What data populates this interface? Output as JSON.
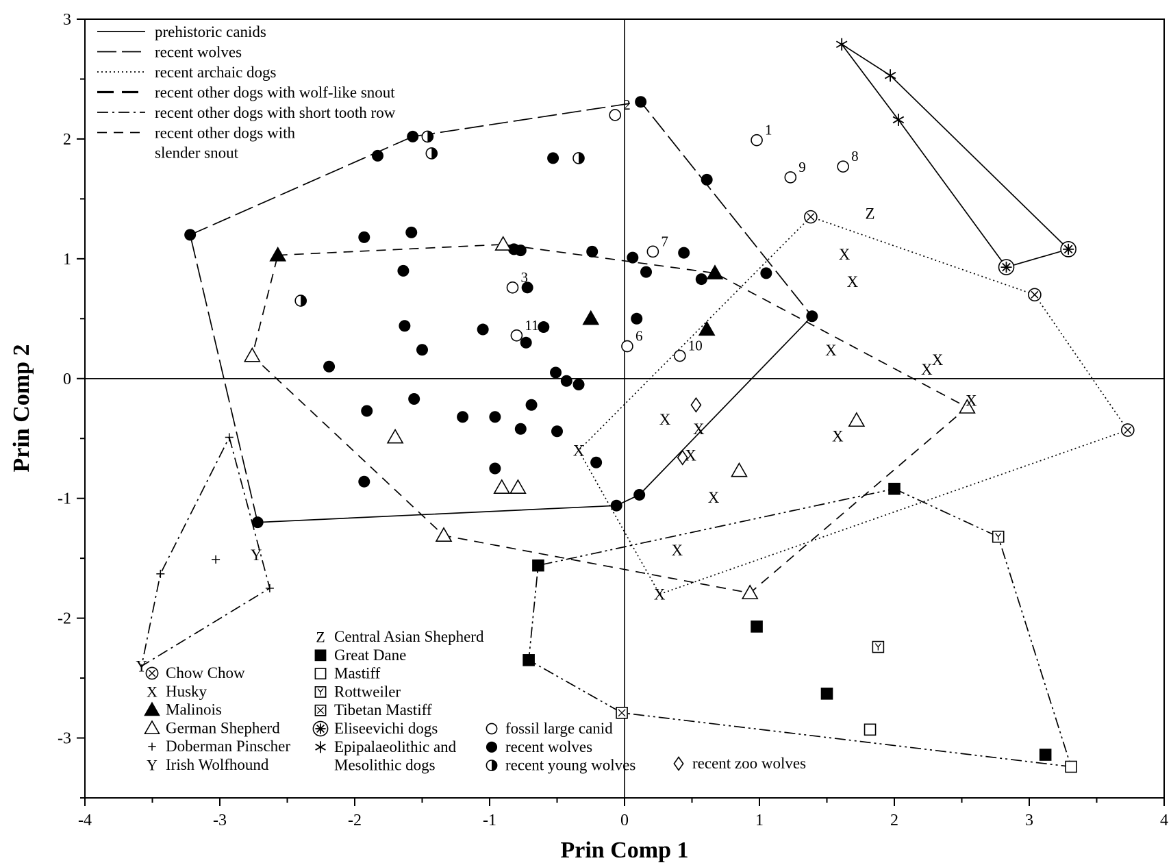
{
  "chart_data": {
    "type": "scatter",
    "xlabel": "Prin Comp 1",
    "ylabel": "Prin Comp 2",
    "xlim": [
      -4,
      4
    ],
    "ylim": [
      -3.5,
      3
    ],
    "xticks": [
      -4,
      -3,
      -2,
      -1,
      0,
      1,
      2,
      3,
      4
    ],
    "yticks": [
      -3,
      -2,
      -1,
      0,
      1,
      2,
      3
    ],
    "zero_lines": true,
    "line_legend": [
      {
        "label": "prehistoric canids",
        "style": "solid"
      },
      {
        "label": "recent wolves",
        "style": "longdash"
      },
      {
        "label": "recent archaic dogs",
        "style": "dotted"
      },
      {
        "label": "recent other dogs with wolf-like snout",
        "style": "boldlongdash"
      },
      {
        "label": "recent other dogs with short tooth row",
        "style": "dashdot"
      },
      {
        "label": "recent other dogs with",
        "label2": "slender snout",
        "style": "dash"
      }
    ],
    "marker_legend": [
      {
        "symbol": "circle-x",
        "label": "Chow Chow"
      },
      {
        "symbol": "X",
        "label": "Husky"
      },
      {
        "symbol": "triangle-filled",
        "label": "Malinois"
      },
      {
        "symbol": "triangle-open",
        "label": "German Shepherd"
      },
      {
        "symbol": "plus",
        "label": "Doberman Pinscher"
      },
      {
        "symbol": "Y",
        "label": "Irish Wolfhound"
      },
      {
        "symbol": "Z",
        "label": "Central Asian Shepherd"
      },
      {
        "symbol": "square-filled",
        "label": "Great Dane"
      },
      {
        "symbol": "square-open",
        "label": "Mastiff"
      },
      {
        "symbol": "square-y",
        "label": "Rottweiler"
      },
      {
        "symbol": "square-x",
        "label": "Tibetan Mastiff"
      },
      {
        "symbol": "circle-star",
        "label": "Eliseevichi dogs"
      },
      {
        "symbol": "asterisk",
        "label": "Epipalaeolithic and",
        "label2": "Mesolithic dogs"
      },
      {
        "symbol": "circle-open",
        "label": "fossil large canid"
      },
      {
        "symbol": "circle-filled",
        "label": "recent wolves"
      },
      {
        "symbol": "circle-half",
        "label": "recent young wolves"
      },
      {
        "symbol": "diamond-open",
        "label": "recent zoo wolves"
      }
    ],
    "series": [
      {
        "group": "fossil large canid",
        "symbol": "circle-open",
        "points": [
          {
            "x": -0.07,
            "y": 2.2,
            "label": "2"
          },
          {
            "x": 0.98,
            "y": 1.99,
            "label": "1"
          },
          {
            "x": 1.23,
            "y": 1.68,
            "label": "9"
          },
          {
            "x": 1.62,
            "y": 1.77,
            "label": "8"
          },
          {
            "x": 0.21,
            "y": 1.06,
            "label": "7"
          },
          {
            "x": -0.83,
            "y": 0.76,
            "label": "3"
          },
          {
            "x": -0.8,
            "y": 0.36,
            "label": "11"
          },
          {
            "x": 0.02,
            "y": 0.27,
            "label": "6"
          },
          {
            "x": 0.41,
            "y": 0.19,
            "label": "10"
          }
        ]
      },
      {
        "group": "recent wolves",
        "symbol": "circle-filled",
        "points": [
          {
            "x": 0.12,
            "y": 2.31
          },
          {
            "x": -1.57,
            "y": 2.02
          },
          {
            "x": -1.83,
            "y": 1.86
          },
          {
            "x": -0.53,
            "y": 1.84
          },
          {
            "x": 0.61,
            "y": 1.66
          },
          {
            "x": -3.22,
            "y": 1.2
          },
          {
            "x": -1.93,
            "y": 1.18
          },
          {
            "x": -1.58,
            "y": 1.22
          },
          {
            "x": -0.82,
            "y": 1.08
          },
          {
            "x": -0.77,
            "y": 1.07
          },
          {
            "x": -0.24,
            "y": 1.06
          },
          {
            "x": 0.06,
            "y": 1.01
          },
          {
            "x": 0.44,
            "y": 1.05
          },
          {
            "x": -1.64,
            "y": 0.9
          },
          {
            "x": 0.16,
            "y": 0.89
          },
          {
            "x": 0.57,
            "y": 0.83
          },
          {
            "x": 1.05,
            "y": 0.88
          },
          {
            "x": -0.72,
            "y": 0.76
          },
          {
            "x": 0.09,
            "y": 0.5
          },
          {
            "x": 1.39,
            "y": 0.52
          },
          {
            "x": -1.63,
            "y": 0.44
          },
          {
            "x": -1.05,
            "y": 0.41
          },
          {
            "x": -0.6,
            "y": 0.43
          },
          {
            "x": -0.73,
            "y": 0.3
          },
          {
            "x": -1.5,
            "y": 0.24
          },
          {
            "x": -2.19,
            "y": 0.1
          },
          {
            "x": -0.51,
            "y": 0.05
          },
          {
            "x": -0.43,
            "y": -0.02
          },
          {
            "x": -0.34,
            "y": -0.05
          },
          {
            "x": -1.56,
            "y": -0.17
          },
          {
            "x": -0.69,
            "y": -0.22
          },
          {
            "x": -1.91,
            "y": -0.27
          },
          {
            "x": -1.2,
            "y": -0.32
          },
          {
            "x": -0.96,
            "y": -0.32
          },
          {
            "x": -0.77,
            "y": -0.42
          },
          {
            "x": -0.5,
            "y": -0.44
          },
          {
            "x": -0.21,
            "y": -0.7
          },
          {
            "x": -0.96,
            "y": -0.75
          },
          {
            "x": -1.93,
            "y": -0.86
          },
          {
            "x": 0.11,
            "y": -0.97
          },
          {
            "x": -0.06,
            "y": -1.06
          },
          {
            "x": -2.72,
            "y": -1.2
          }
        ]
      },
      {
        "group": "recent young wolves",
        "symbol": "circle-half",
        "points": [
          {
            "x": -1.46,
            "y": 2.02
          },
          {
            "x": -1.43,
            "y": 1.88
          },
          {
            "x": -0.34,
            "y": 1.84
          },
          {
            "x": -2.4,
            "y": 0.65
          }
        ]
      },
      {
        "group": "Malinois",
        "symbol": "triangle-filled",
        "points": [
          {
            "x": -2.57,
            "y": 1.03
          },
          {
            "x": 0.67,
            "y": 0.88
          },
          {
            "x": -0.25,
            "y": 0.5
          },
          {
            "x": 0.61,
            "y": 0.41
          }
        ]
      },
      {
        "group": "German Shepherd",
        "symbol": "triangle-open",
        "points": [
          {
            "x": -0.9,
            "y": 1.12
          },
          {
            "x": -2.76,
            "y": 0.19
          },
          {
            "x": -1.7,
            "y": -0.49
          },
          {
            "x": 1.72,
            "y": -0.35
          },
          {
            "x": 2.54,
            "y": -0.24
          },
          {
            "x": 0.85,
            "y": -0.77
          },
          {
            "x": -0.91,
            "y": -0.91
          },
          {
            "x": -0.79,
            "y": -0.91
          },
          {
            "x": -1.34,
            "y": -1.31
          },
          {
            "x": 0.93,
            "y": -1.79
          }
        ]
      },
      {
        "group": "Husky",
        "symbol": "X",
        "points": [
          {
            "x": 1.63,
            "y": 1.04
          },
          {
            "x": 1.69,
            "y": 0.81
          },
          {
            "x": 1.53,
            "y": 0.24
          },
          {
            "x": 2.24,
            "y": 0.08
          },
          {
            "x": 2.32,
            "y": 0.16
          },
          {
            "x": 2.57,
            "y": -0.18
          },
          {
            "x": 0.3,
            "y": -0.34
          },
          {
            "x": 0.55,
            "y": -0.42
          },
          {
            "x": 1.58,
            "y": -0.48
          },
          {
            "x": -0.34,
            "y": -0.6
          },
          {
            "x": 0.49,
            "y": -0.64
          },
          {
            "x": 0.66,
            "y": -0.99
          },
          {
            "x": 0.39,
            "y": -1.43
          },
          {
            "x": 0.26,
            "y": -1.8
          }
        ]
      },
      {
        "group": "Central Asian Shepherd",
        "symbol": "Z",
        "points": [
          {
            "x": 1.82,
            "y": 1.38
          }
        ]
      },
      {
        "group": "Chow Chow",
        "symbol": "circle-x",
        "points": [
          {
            "x": 1.38,
            "y": 1.35
          },
          {
            "x": 3.04,
            "y": 0.7
          },
          {
            "x": 3.73,
            "y": -0.43
          }
        ]
      },
      {
        "group": "Eliseevichi dogs",
        "symbol": "circle-star",
        "points": [
          {
            "x": 2.83,
            "y": 0.93
          },
          {
            "x": 3.29,
            "y": 1.08
          }
        ]
      },
      {
        "group": "Epipalaeolithic and Mesolithic dogs",
        "symbol": "asterisk",
        "points": [
          {
            "x": 1.61,
            "y": 2.79
          },
          {
            "x": 1.97,
            "y": 2.53
          },
          {
            "x": 2.03,
            "y": 2.16
          }
        ]
      },
      {
        "group": "recent zoo wolves",
        "symbol": "diamond-open",
        "points": [
          {
            "x": 0.53,
            "y": -0.22
          },
          {
            "x": 0.43,
            "y": -0.66
          }
        ]
      },
      {
        "group": "Great Dane",
        "symbol": "square-filled",
        "points": [
          {
            "x": 2.0,
            "y": -0.92
          },
          {
            "x": -0.64,
            "y": -1.56
          },
          {
            "x": 0.98,
            "y": -2.07
          },
          {
            "x": -0.71,
            "y": -2.35
          },
          {
            "x": 1.5,
            "y": -2.63
          },
          {
            "x": 3.12,
            "y": -3.14
          }
        ]
      },
      {
        "group": "Mastiff",
        "symbol": "square-open",
        "points": [
          {
            "x": 1.82,
            "y": -2.93
          },
          {
            "x": 3.31,
            "y": -3.24
          }
        ]
      },
      {
        "group": "Rottweiler",
        "symbol": "square-y",
        "points": [
          {
            "x": 2.77,
            "y": -1.32
          },
          {
            "x": 1.88,
            "y": -2.24
          }
        ]
      },
      {
        "group": "Tibetan Mastiff",
        "symbol": "square-x",
        "points": [
          {
            "x": -0.02,
            "y": -2.79
          }
        ]
      },
      {
        "group": "Doberman Pinscher",
        "symbol": "plus",
        "points": [
          {
            "x": -2.93,
            "y": -0.49
          },
          {
            "x": -3.03,
            "y": -1.51
          },
          {
            "x": -3.44,
            "y": -1.63
          },
          {
            "x": -2.63,
            "y": -1.75
          }
        ]
      },
      {
        "group": "Irish Wolfhound",
        "symbol": "Y",
        "points": [
          {
            "x": -2.73,
            "y": -1.47
          },
          {
            "x": -3.58,
            "y": -2.4
          }
        ]
      }
    ],
    "hulls": [
      {
        "group": "recent wolves",
        "style": "longdash",
        "points": [
          [
            -3.22,
            1.2
          ],
          [
            -1.57,
            2.02
          ],
          [
            0.12,
            2.31
          ],
          [
            1.39,
            0.52
          ]
        ]
      },
      {
        "group": "recent wolves",
        "style": "solid",
        "points": [
          [
            1.39,
            0.52
          ],
          [
            0.11,
            -0.97
          ],
          [
            -0.06,
            -1.06
          ],
          [
            -2.72,
            -1.2
          ]
        ]
      },
      {
        "group": "recent wolves",
        "style": "longdash",
        "points": [
          [
            -2.72,
            -1.2
          ],
          [
            -3.22,
            1.2
          ]
        ]
      },
      {
        "group": "prehistoric canids",
        "style": "solid",
        "points": [
          [
            1.61,
            2.79
          ],
          [
            1.97,
            2.53
          ],
          [
            3.29,
            1.08
          ],
          [
            2.83,
            0.93
          ],
          [
            2.03,
            2.16
          ],
          [
            1.61,
            2.79
          ]
        ]
      },
      {
        "group": "recent archaic dogs",
        "style": "dotted",
        "points": [
          [
            1.38,
            1.35
          ],
          [
            3.04,
            0.7
          ],
          [
            3.73,
            -0.43
          ],
          [
            0.26,
            -1.8
          ],
          [
            -0.34,
            -0.6
          ],
          [
            1.38,
            1.35
          ]
        ]
      },
      {
        "group": "recent other dogs with wolf-like snout",
        "style": "dash",
        "points": [
          [
            -2.57,
            1.03
          ],
          [
            -0.9,
            1.12
          ],
          [
            0.67,
            0.88
          ],
          [
            2.54,
            -0.24
          ],
          [
            0.93,
            -1.79
          ],
          [
            -1.34,
            -1.31
          ],
          [
            -2.76,
            0.19
          ],
          [
            -2.57,
            1.03
          ]
        ]
      },
      {
        "group": "recent other dogs with short tooth row",
        "style": "dashdotdot",
        "points": [
          [
            2.0,
            -0.92
          ],
          [
            2.77,
            -1.32
          ],
          [
            3.31,
            -3.24
          ],
          [
            -0.02,
            -2.79
          ],
          [
            -0.71,
            -2.35
          ],
          [
            -0.64,
            -1.56
          ],
          [
            2.0,
            -0.92
          ]
        ]
      },
      {
        "group": "recent other dogs with slender snout",
        "style": "dashdot",
        "points": [
          [
            -2.93,
            -0.49
          ],
          [
            -2.63,
            -1.75
          ],
          [
            -3.58,
            -2.4
          ],
          [
            -3.44,
            -1.63
          ],
          [
            -2.93,
            -0.49
          ]
        ]
      }
    ]
  }
}
